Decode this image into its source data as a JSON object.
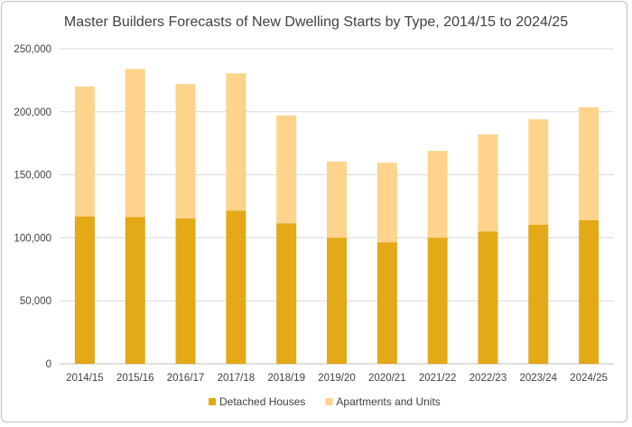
{
  "chart_data": {
    "type": "bar",
    "stacked": true,
    "title": "Master Builders Forecasts of New Dwelling Starts by Type, 2014/15 to 2024/25",
    "xlabel": "",
    "ylabel": "",
    "ylim": [
      0,
      250000
    ],
    "yticks": [
      0,
      50000,
      100000,
      150000,
      200000,
      250000
    ],
    "ytick_labels": [
      "0",
      "50,000",
      "100,000",
      "150,000",
      "200,000",
      "250,000"
    ],
    "grid": true,
    "legend_position": "bottom",
    "categories": [
      "2014/15",
      "2015/16",
      "2016/17",
      "2017/18",
      "2018/19",
      "2019/20",
      "2020/21",
      "2021/22",
      "2022/23",
      "2023/24",
      "2024/25"
    ],
    "series": [
      {
        "name": "Detached Houses",
        "color": "#E3A917",
        "values": [
          117000,
          116500,
          115500,
          121500,
          111500,
          100000,
          96500,
          100000,
          105000,
          110500,
          114000
        ]
      },
      {
        "name": "Apartments and Units",
        "color": "#FED38C",
        "values": [
          103000,
          117500,
          106500,
          109000,
          85500,
          60500,
          63000,
          69000,
          77000,
          83500,
          89500
        ]
      }
    ]
  }
}
